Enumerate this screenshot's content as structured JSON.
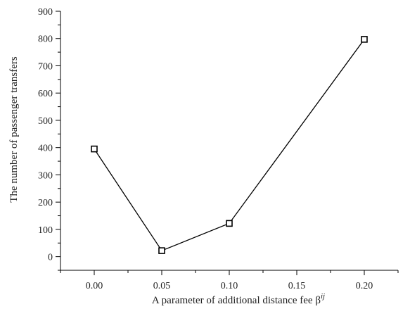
{
  "chart_data": {
    "type": "line",
    "xlabel": "A parameter of  additional distance fee β",
    "xlabel_superscript": "ij",
    "ylabel": "The number of passenger transfers",
    "x_ticks": [
      "0.00",
      "0.05",
      "0.10",
      "0.15",
      "0.20"
    ],
    "y_ticks": [
      "0",
      "100",
      "200",
      "300",
      "400",
      "500",
      "600",
      "700",
      "800",
      "900"
    ],
    "xlim": [
      -0.025,
      0.225
    ],
    "ylim": [
      -50,
      900
    ],
    "grid": false,
    "marker": "hollow-square",
    "series": [
      {
        "x": [
          0.0,
          0.05,
          0.1,
          0.2
        ],
        "values": [
          395,
          22,
          122,
          797
        ]
      }
    ]
  }
}
